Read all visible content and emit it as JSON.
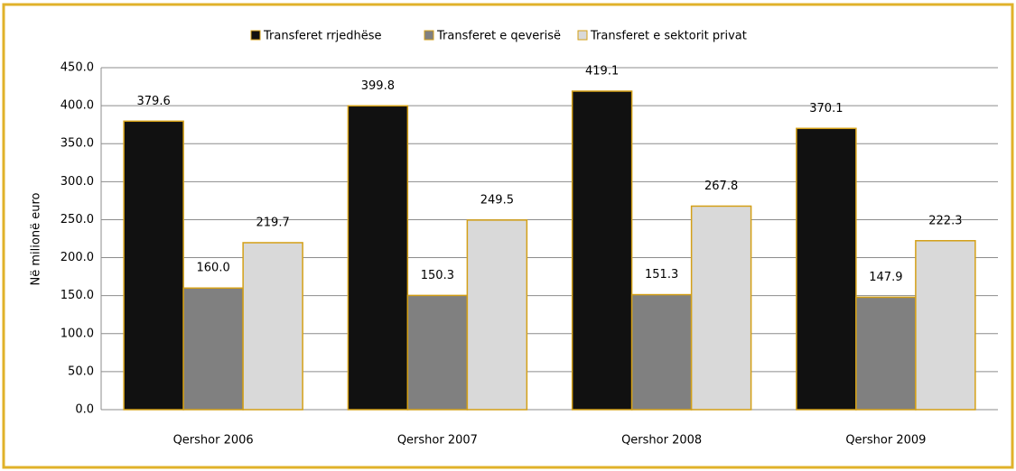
{
  "chart_data": {
    "type": "bar",
    "y_label": "Në milionë euro",
    "categories": [
      "Qershor 2006",
      "Qershor 2007",
      "Qershor 2008",
      "Qershor 2009"
    ],
    "series": [
      {
        "name": "Transferet rrjedhëse",
        "color": "#111111",
        "values": [
          379.6,
          399.8,
          419.1,
          370.1
        ]
      },
      {
        "name": "Transferet e qeverisë",
        "color": "#808080",
        "values": [
          160,
          150.3,
          151.3,
          147.9
        ],
        "value_labels": [
          "160.0",
          "150.3",
          "151.3",
          "147.9"
        ]
      },
      {
        "name": "Transferet e sektorit privat",
        "color": "#d9d9d9",
        "values": [
          219.7,
          249.5,
          267.8,
          222.3
        ]
      }
    ],
    "bar_outline": "#d4a017",
    "ylim": [
      0,
      450
    ],
    "yticks": [
      {
        "value": 0,
        "label": "0.0"
      },
      {
        "value": 50,
        "label": "50.0"
      },
      {
        "value": 100,
        "label": "100.0"
      },
      {
        "value": 150,
        "label": "150.0"
      },
      {
        "value": 200,
        "label": "200.0"
      },
      {
        "value": 250,
        "label": "250.0"
      },
      {
        "value": 300,
        "label": "300.0"
      },
      {
        "value": 350,
        "label": "350.0"
      },
      {
        "value": 400,
        "label": "400.0"
      },
      {
        "value": 450,
        "label": "450.0"
      }
    ],
    "grid": true,
    "legend": "top"
  }
}
